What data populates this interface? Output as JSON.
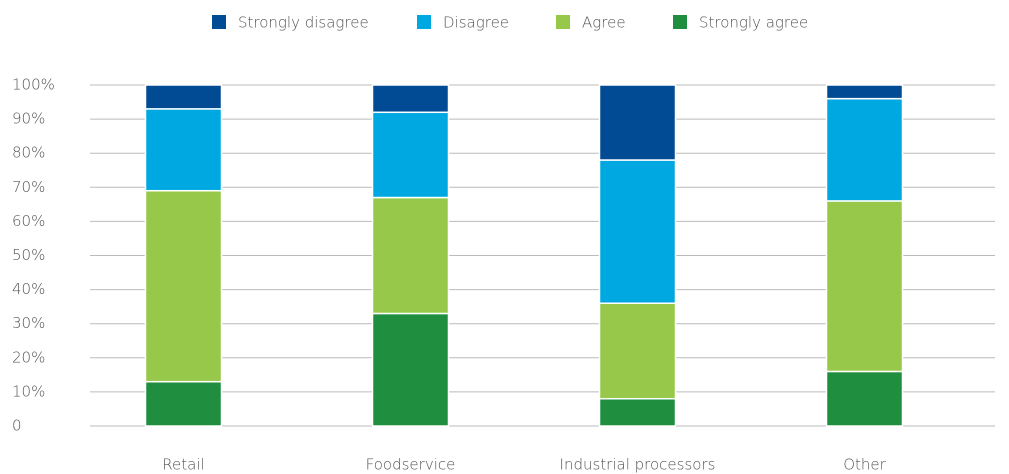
{
  "chart_data": {
    "type": "stacked_bar",
    "categories": [
      "Retail",
      "Foodservice",
      "Industrial processors",
      "Other"
    ],
    "series": [
      {
        "name": "Strongly disagree",
        "color": "#004b93",
        "values": [
          7,
          8,
          22,
          4
        ]
      },
      {
        "name": "Disagree",
        "color": "#00a8e1",
        "values": [
          24,
          25,
          42,
          30
        ]
      },
      {
        "name": "Agree",
        "color": "#97c84a",
        "values": [
          56,
          34,
          28,
          50
        ]
      },
      {
        "name": "Strongly agree",
        "color": "#1f8f3f",
        "values": [
          13,
          33,
          8,
          16
        ]
      }
    ],
    "ylim": [
      0,
      100
    ],
    "yticks": [
      0,
      {
        "value": 10,
        "label": "10%"
      },
      {
        "value": 20,
        "label": "20%"
      },
      {
        "value": 30,
        "label": "30%"
      },
      {
        "value": 40,
        "label": "40%"
      },
      {
        "value": 50,
        "label": "50%"
      },
      {
        "value": 60,
        "label": "60%"
      },
      {
        "value": 70,
        "label": "70%"
      },
      {
        "value": 80,
        "label": "80%"
      },
      {
        "value": 90,
        "label": "90%"
      },
      {
        "value": 100,
        "label": "100%"
      }
    ],
    "grid": true,
    "legend": "top"
  }
}
